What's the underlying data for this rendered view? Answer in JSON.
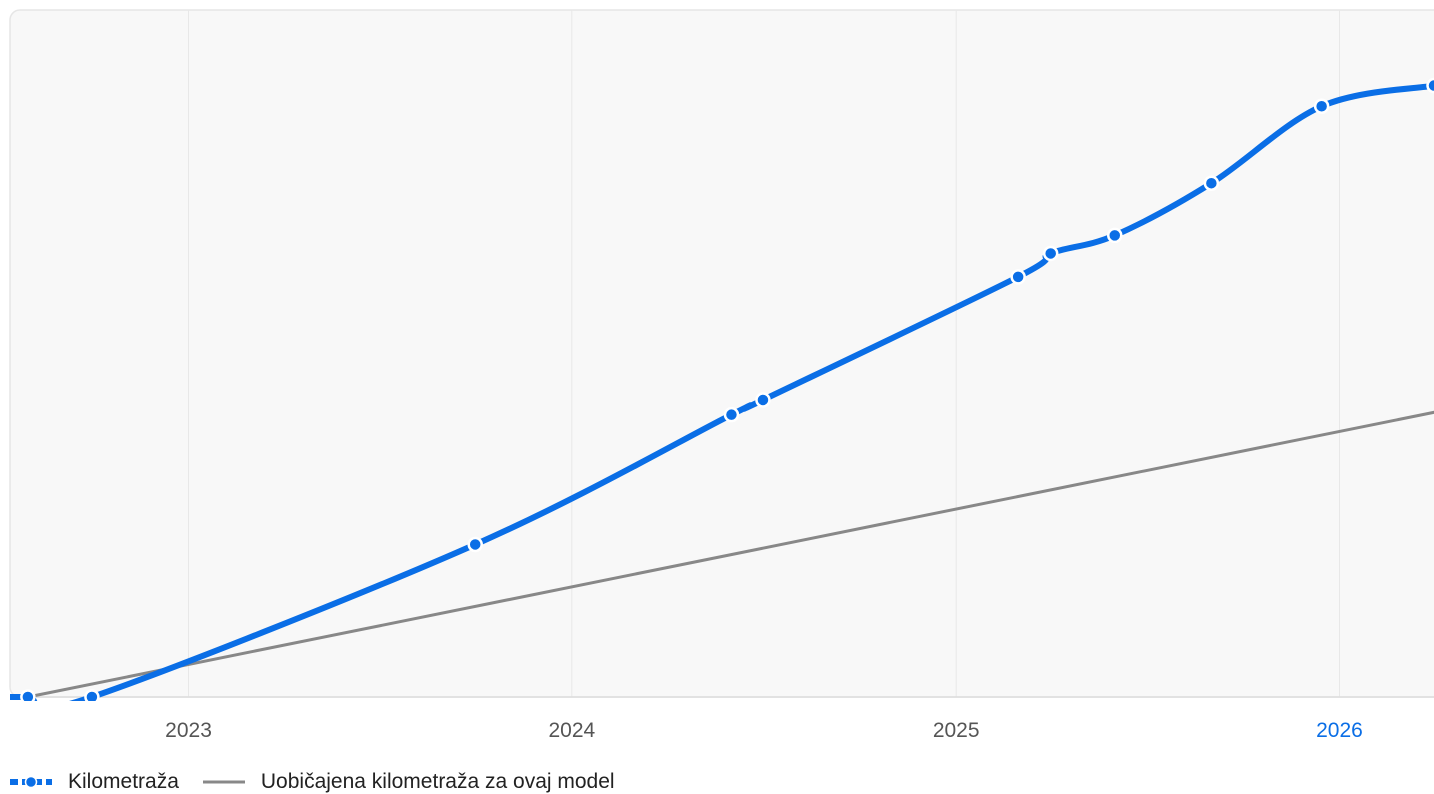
{
  "chart_data": {
    "type": "line",
    "title": "",
    "xlabel": "",
    "ylabel": "",
    "x_ticks": [
      "2023",
      "2024",
      "2025",
      "2026"
    ],
    "highlighted_tick": "2026",
    "x_range": [
      "2022-07-15",
      "2026-04-01"
    ],
    "grid": true,
    "legend_position": "bottom-left",
    "series": [
      {
        "name": "Kilometraža",
        "color": "#0a6ee6",
        "style": "dashed-dots",
        "points": [
          [
            "2022-08-01",
            0.0
          ],
          [
            "2022-10-01",
            0.0
          ],
          [
            "2023-10-01",
            0.228
          ],
          [
            "2024-06-01",
            0.422
          ],
          [
            "2024-07-01",
            0.444
          ],
          [
            "2025-03-01",
            0.628
          ],
          [
            "2025-04-01",
            0.663
          ],
          [
            "2025-06-01",
            0.69
          ],
          [
            "2025-09-01",
            0.768
          ],
          [
            "2025-12-15",
            0.883
          ],
          [
            "2026-04-01",
            0.914
          ]
        ]
      },
      {
        "name": "Uobičajena kilometraža za ovaj model",
        "color": "#888888",
        "style": "solid",
        "points": [
          [
            "2022-08-01",
            0.0
          ],
          [
            "2026-04-15",
            0.43
          ]
        ]
      }
    ]
  },
  "colors": {
    "background": "#f8f8f8",
    "grid": "#e8e8e8",
    "tick_text": "#555555",
    "highlight_tick": "#0a6ee6"
  }
}
